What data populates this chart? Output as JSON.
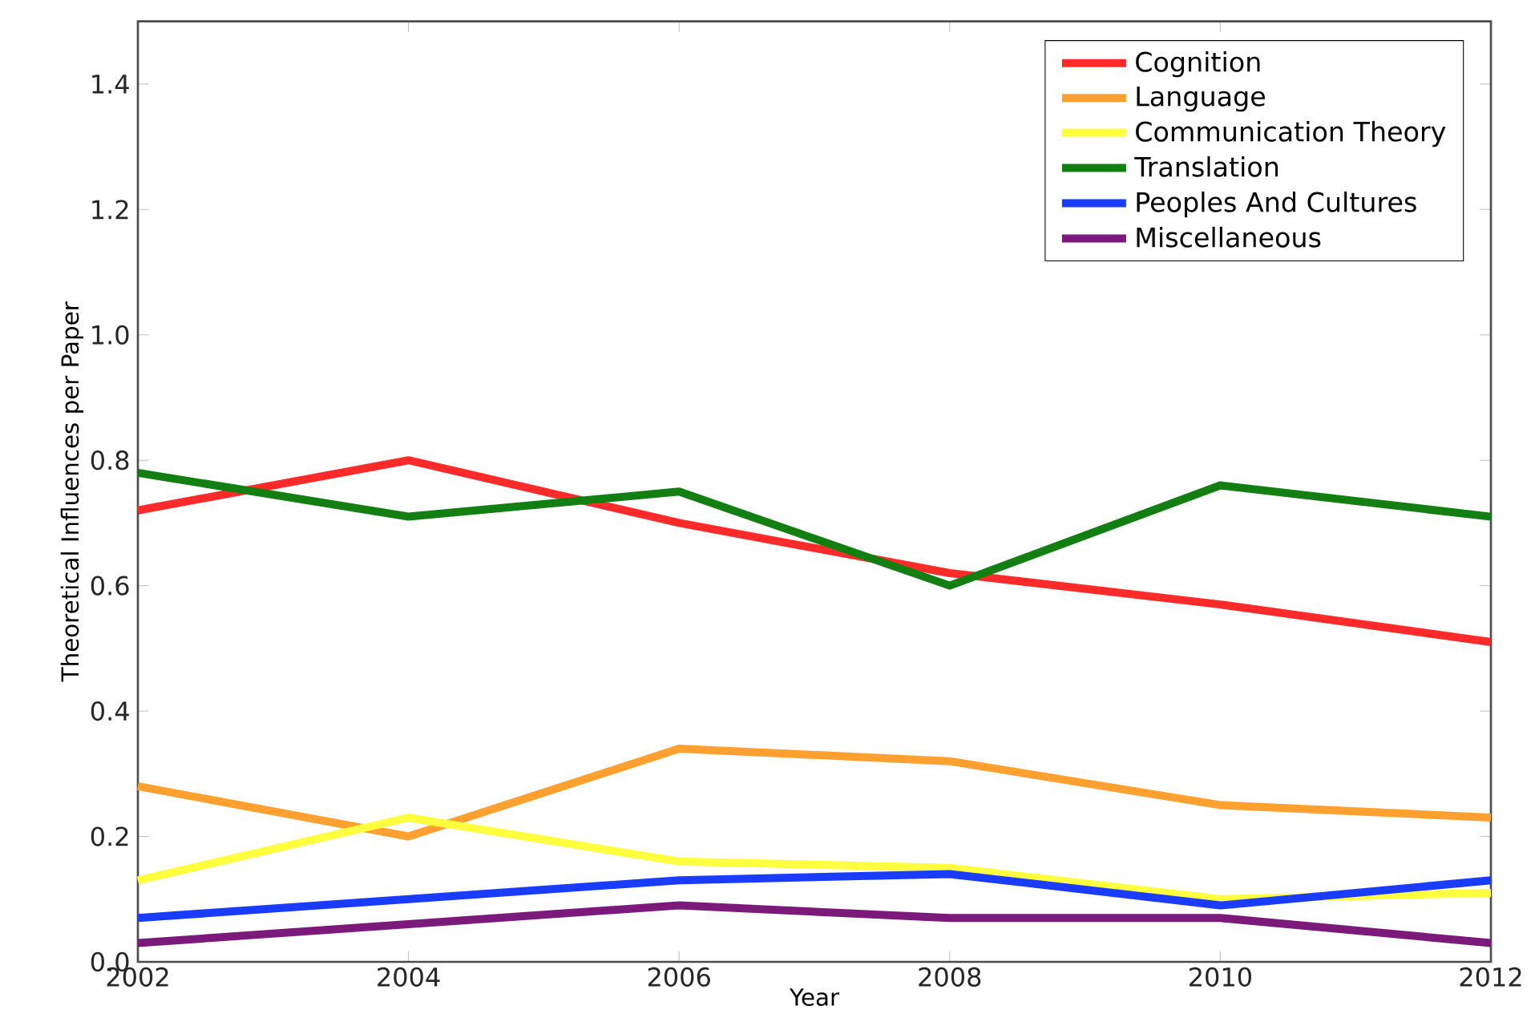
{
  "chart_data": {
    "type": "line",
    "xlabel": "Year",
    "ylabel": "Theoretical Influences per Paper",
    "x": [
      2002,
      2004,
      2006,
      2008,
      2010,
      2012
    ],
    "series": [
      {
        "name": "Cognition",
        "color": "#ff2a2a",
        "values": [
          0.72,
          0.8,
          0.7,
          0.62,
          0.57,
          0.51
        ]
      },
      {
        "name": "Language",
        "color": "#ffa030",
        "values": [
          0.28,
          0.2,
          0.34,
          0.32,
          0.25,
          0.23
        ]
      },
      {
        "name": "Communication Theory",
        "color": "#ffff40",
        "values": [
          0.13,
          0.23,
          0.16,
          0.15,
          0.1,
          0.11
        ]
      },
      {
        "name": "Translation",
        "color": "#137f13",
        "values": [
          0.78,
          0.71,
          0.75,
          0.6,
          0.76,
          0.71
        ]
      },
      {
        "name": "Peoples And Cultures",
        "color": "#1a3cff",
        "values": [
          0.07,
          0.1,
          0.13,
          0.14,
          0.09,
          0.13
        ]
      },
      {
        "name": "Miscellaneous",
        "color": "#7b1a7b",
        "values": [
          0.03,
          0.06,
          0.09,
          0.07,
          0.07,
          0.03
        ]
      }
    ],
    "xlim": [
      2002,
      2012
    ],
    "xticks": [
      2002,
      2004,
      2006,
      2008,
      2010,
      2012
    ],
    "ylim": [
      0,
      1.5
    ],
    "yticks": [
      {
        "value": 0,
        "label": "0.0"
      },
      {
        "value": 0.2,
        "label": "0.2"
      },
      {
        "value": 0.4,
        "label": "0.4"
      },
      {
        "value": 0.6,
        "label": "0.6"
      },
      {
        "value": 0.8,
        "label": "0.8"
      },
      {
        "value": 1.0,
        "label": "1.0"
      },
      {
        "value": 1.2,
        "label": "1.2"
      },
      {
        "value": 1.4,
        "label": "1.4"
      }
    ],
    "grid": false,
    "legend": "top right",
    "marker": "none",
    "line_style": "solid"
  }
}
